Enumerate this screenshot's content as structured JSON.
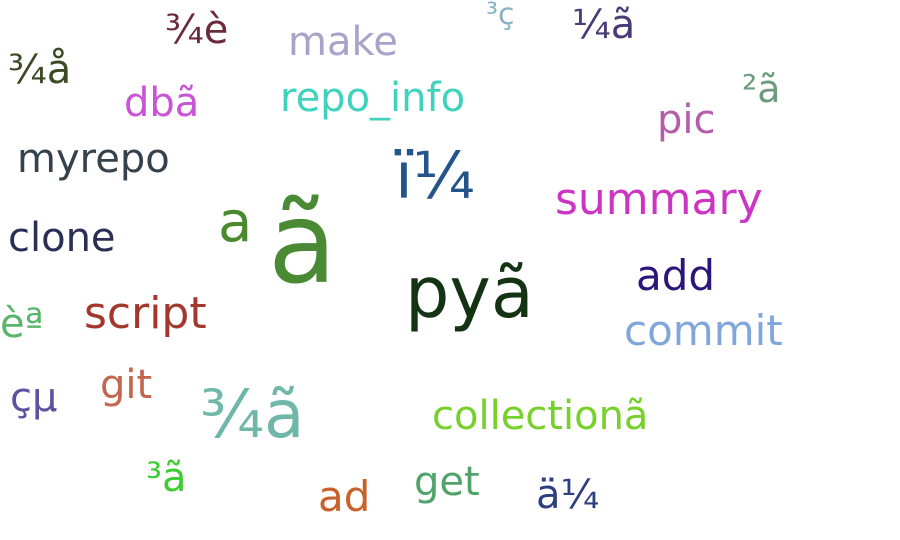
{
  "words": [
    {
      "text": "¾è",
      "color": "#6b2b3a"
    },
    {
      "text": "make",
      "color": "#a9a2c9"
    },
    {
      "text": "³ç",
      "color": "#86b4c6"
    },
    {
      "text": "¼ã",
      "color": "#4a3a78"
    },
    {
      "text": "¾å",
      "color": "#3b4a22"
    },
    {
      "text": "dbã",
      "color": "#c954d6"
    },
    {
      "text": "repo_info",
      "color": "#3fd2bd"
    },
    {
      "text": "²ã",
      "color": "#6b9a7c"
    },
    {
      "text": "pic",
      "color": "#b35eaa"
    },
    {
      "text": "myrepo",
      "color": "#35414c"
    },
    {
      "text": "ï¼",
      "color": "#24558a"
    },
    {
      "text": "summary",
      "color": "#cc34c3"
    },
    {
      "text": "clone",
      "color": "#2b2f55"
    },
    {
      "text": "a",
      "color": "#4a8a2e"
    },
    {
      "text": "ã",
      "color": "#4a8a35"
    },
    {
      "text": "pyã",
      "color": "#133313"
    },
    {
      "text": "add",
      "color": "#2b157a"
    },
    {
      "text": "commit",
      "color": "#80a7dc"
    },
    {
      "text": "èª",
      "color": "#58b66a"
    },
    {
      "text": "script",
      "color": "#a3372e"
    },
    {
      "text": "çµ",
      "color": "#5c52a0"
    },
    {
      "text": "git",
      "color": "#c3664f"
    },
    {
      "text": "¾ã",
      "color": "#6fb7a8"
    },
    {
      "text": "collectionã",
      "color": "#78d12a"
    },
    {
      "text": "³ã",
      "color": "#3ccd35"
    },
    {
      "text": "get",
      "color": "#50a46a"
    },
    {
      "text": "ad",
      "color": "#c9622a"
    },
    {
      "text": "ä¼",
      "color": "#2d3f80"
    }
  ]
}
